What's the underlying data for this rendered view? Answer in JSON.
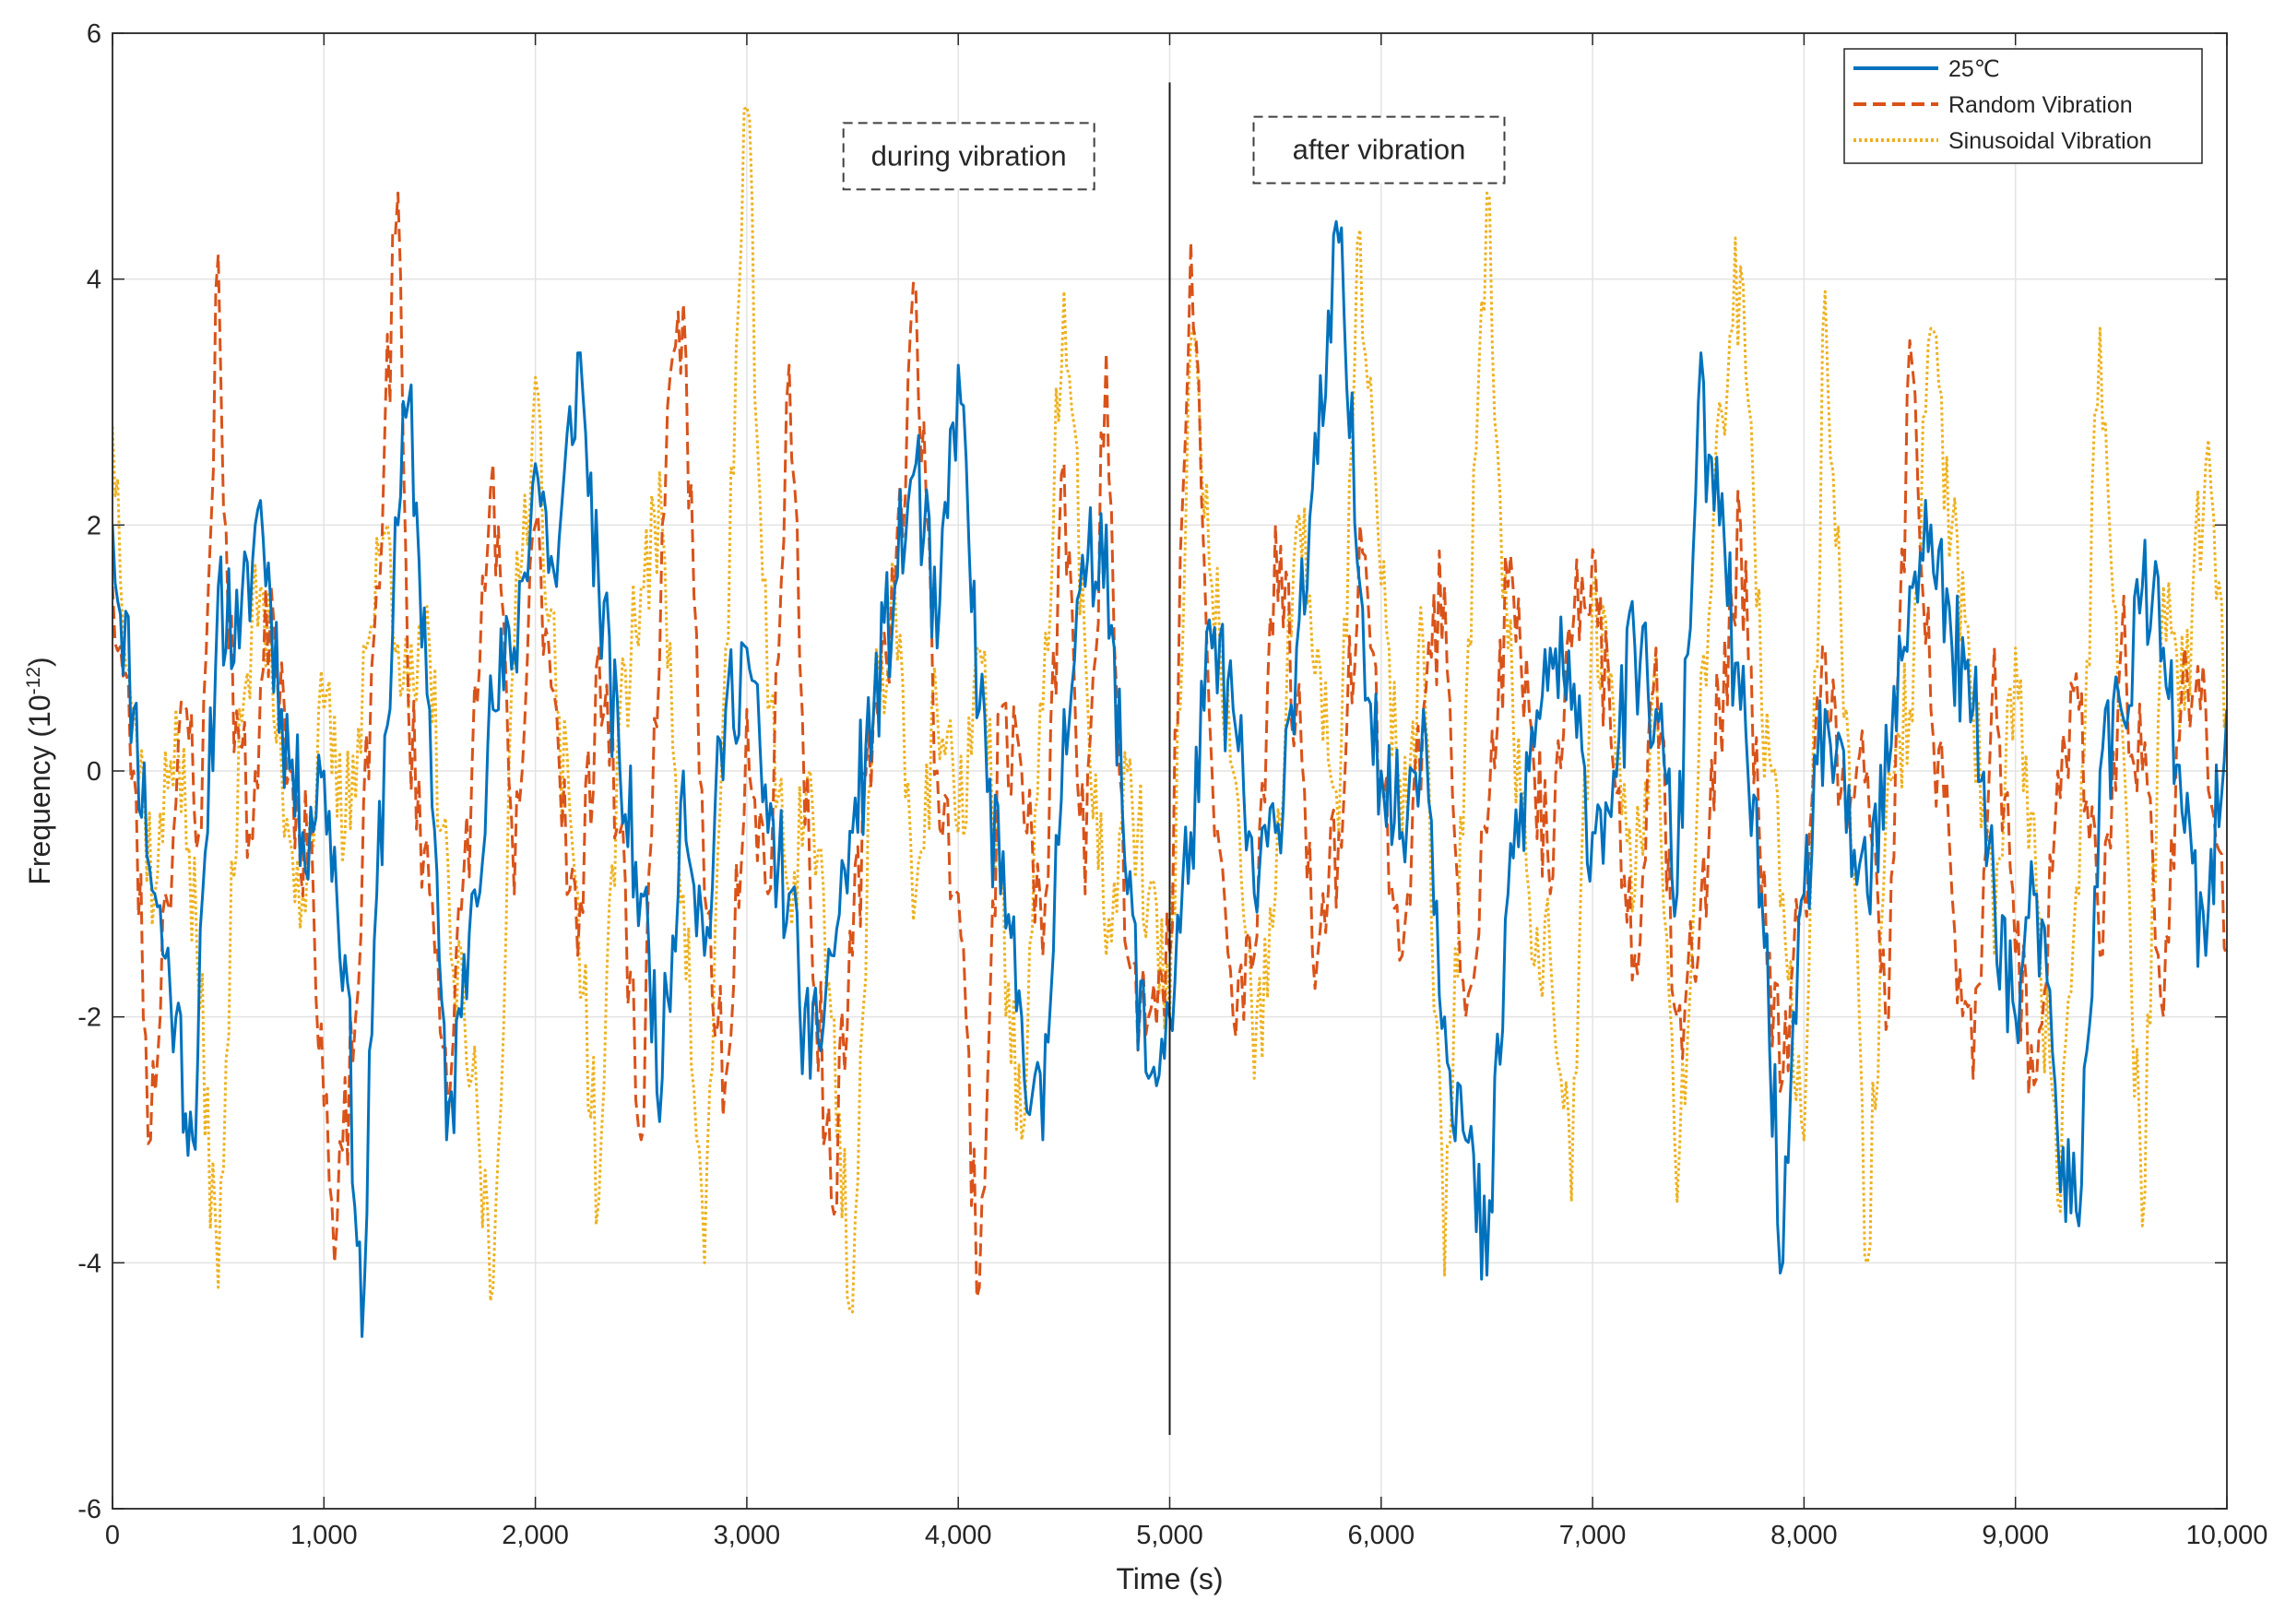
{
  "chart_data": {
    "type": "line",
    "title": "",
    "xlabel": "Time (s)",
    "ylabel": "Frequency (10",
    "ylabel_exponent": "-12",
    "ylabel_suffix": ")",
    "xlim": [
      0,
      10000
    ],
    "ylim": [
      -6,
      6
    ],
    "grid": true,
    "legend_position": "top-right",
    "x_ticks": [
      0,
      1000,
      2000,
      3000,
      4000,
      5000,
      6000,
      7000,
      8000,
      9000,
      10000
    ],
    "x_tick_labels": [
      "0",
      "1,000",
      "2,000",
      "3,000",
      "4,000",
      "5,000",
      "6,000",
      "7,000",
      "8,000",
      "9,000",
      "10,000"
    ],
    "y_ticks": [
      -6,
      -4,
      -2,
      0,
      2,
      4,
      6
    ],
    "y_tick_labels": [
      "-6",
      "-4",
      "-2",
      "0",
      "2",
      "4",
      "6"
    ],
    "divider": {
      "x": 5000,
      "y_top": 5.6,
      "y_bottom": -5.4
    },
    "annotations": [
      {
        "text": "during vibration",
        "x_center": 4050,
        "y": 5.0
      },
      {
        "text": "after vibration",
        "x_center": 5990,
        "y": 5.05
      }
    ],
    "series": [
      {
        "name": "25℃",
        "color": "#0072BD",
        "style": "solid",
        "x": [
          0,
          100,
          200,
          300,
          380,
          450,
          500,
          600,
          700,
          800,
          900,
          1000,
          1100,
          1180,
          1250,
          1350,
          1400,
          1500,
          1580,
          1650,
          1700,
          1800,
          1900,
          2000,
          2100,
          2200,
          2300,
          2400,
          2500,
          2600,
          2700,
          2800,
          2900,
          3000,
          3100,
          3200,
          3300,
          3400,
          3500,
          3600,
          3700,
          3800,
          3900,
          4000,
          4100,
          4200,
          4300,
          4400,
          4500,
          4600,
          4700,
          4800,
          4900,
          5000,
          5100,
          5200,
          5300,
          5400,
          5500,
          5600,
          5700,
          5800,
          5900,
          6000,
          6100,
          6200,
          6300,
          6400,
          6500,
          6600,
          6700,
          6800,
          6900,
          7000,
          7100,
          7200,
          7300,
          7400,
          7500,
          7600,
          7700,
          7800,
          7900,
          8000,
          8100,
          8200,
          8300,
          8400,
          8500,
          8600,
          8700,
          8800,
          8900,
          9000,
          9100,
          9200,
          9300,
          9400,
          9500,
          9600,
          9700,
          9800,
          9900,
          10000
        ],
        "y": [
          2.0,
          0.5,
          -1.0,
          -2.0,
          -3.0,
          -0.5,
          1.5,
          1.0,
          2.2,
          0.5,
          -0.5,
          0.0,
          -1.5,
          -4.6,
          -1.0,
          2.0,
          3.0,
          0.5,
          -3.0,
          -2.0,
          -1.0,
          0.5,
          1.0,
          2.5,
          1.5,
          3.4,
          1.5,
          0.0,
          -1.0,
          -2.5,
          0.0,
          -1.5,
          0.5,
          1.0,
          -0.5,
          -1.0,
          -2.5,
          -1.5,
          -0.5,
          0.5,
          1.5,
          2.5,
          1.0,
          3.3,
          0.5,
          -1.0,
          -2.0,
          -3.0,
          0.5,
          1.5,
          2.0,
          -1.0,
          -2.5,
          -2.0,
          -0.5,
          1.0,
          0.5,
          -1.0,
          -0.5,
          1.0,
          2.5,
          4.3,
          1.5,
          0.0,
          -0.5,
          0.5,
          -2.0,
          -3.0,
          -4.1,
          -1.0,
          0.0,
          1.0,
          0.5,
          -0.5,
          0.0,
          1.0,
          0.5,
          -1.0,
          3.0,
          2.0,
          0.5,
          -1.0,
          -4.0,
          -1.0,
          0.5,
          -0.5,
          -1.0,
          0.0,
          1.5,
          2.0,
          1.0,
          0.5,
          -1.0,
          -2.0,
          -1.0,
          -3.0,
          -3.7,
          0.0,
          0.5,
          1.5,
          1.0,
          -0.5,
          -1.5,
          0.5
        ]
      },
      {
        "name": "Random Vibration",
        "color": "#D95319",
        "style": "dashed",
        "x": [
          0,
          100,
          180,
          250,
          350,
          420,
          500,
          550,
          650,
          750,
          850,
          950,
          1050,
          1150,
          1250,
          1350,
          1400,
          1500,
          1600,
          1700,
          1800,
          1900,
          2000,
          2100,
          2200,
          2300,
          2400,
          2500,
          2600,
          2700,
          2800,
          2900,
          3000,
          3100,
          3200,
          3300,
          3400,
          3500,
          3600,
          3700,
          3800,
          3900,
          4000,
          4100,
          4200,
          4300,
          4400,
          4500,
          4600,
          4700,
          4800,
          4900,
          5000,
          5100,
          5200,
          5300,
          5400,
          5500,
          5600,
          5700,
          5800,
          5900,
          6000,
          6100,
          6200,
          6300,
          6400,
          6500,
          6600,
          6700,
          6800,
          6900,
          7000,
          7100,
          7200,
          7300,
          7400,
          7500,
          7600,
          7700,
          7800,
          7900,
          8000,
          8100,
          8200,
          8300,
          8400,
          8500,
          8600,
          8700,
          8800,
          8900,
          9000,
          9100,
          9200,
          9300,
          9400,
          9500,
          9600,
          9700,
          9800,
          9900,
          10000
        ],
        "y": [
          1.5,
          0.0,
          -3.0,
          -1.0,
          0.5,
          -0.5,
          4.2,
          1.0,
          -0.5,
          1.5,
          0.0,
          -1.0,
          -4.0,
          -2.0,
          1.5,
          4.7,
          0.5,
          -1.0,
          -2.5,
          0.0,
          2.5,
          -1.0,
          2.0,
          0.5,
          -1.5,
          1.0,
          -0.5,
          -3.0,
          2.0,
          3.8,
          -1.0,
          -2.5,
          0.5,
          -1.0,
          3.3,
          -1.0,
          -3.5,
          -1.5,
          0.5,
          1.5,
          3.9,
          0.0,
          -1.0,
          -4.2,
          0.5,
          0.0,
          -1.5,
          2.5,
          -1.0,
          3.4,
          -1.5,
          -2.0,
          -1.5,
          4.3,
          0.0,
          -2.0,
          -1.5,
          2.0,
          0.5,
          -1.5,
          -0.5,
          2.0,
          0.0,
          -1.5,
          0.5,
          1.5,
          -2.0,
          -0.5,
          1.5,
          0.5,
          -1.0,
          1.0,
          1.8,
          0.0,
          -1.5,
          1.0,
          -2.0,
          -1.5,
          0.5,
          2.0,
          -1.0,
          -2.5,
          -1.0,
          1.0,
          -0.5,
          0.0,
          -2.0,
          3.5,
          0.5,
          -1.0,
          -2.5,
          1.0,
          -1.5,
          -2.5,
          0.0,
          0.5,
          -1.5,
          1.0,
          0.0,
          -2.0,
          1.0,
          0.5,
          -1.5
        ]
      },
      {
        "name": "Sinusoidal Vibration",
        "color": "#EDB120",
        "style": "dotted",
        "x": [
          0,
          100,
          200,
          300,
          400,
          500,
          600,
          700,
          800,
          900,
          1000,
          1100,
          1200,
          1300,
          1400,
          1500,
          1600,
          1700,
          1800,
          1900,
          2000,
          2100,
          2200,
          2300,
          2400,
          2500,
          2600,
          2700,
          2800,
          2900,
          3000,
          3100,
          3200,
          3300,
          3400,
          3500,
          3600,
          3700,
          3800,
          3900,
          4000,
          4100,
          4200,
          4300,
          4400,
          4500,
          4600,
          4700,
          4800,
          4900,
          5000,
          5100,
          5200,
          5300,
          5400,
          5500,
          5600,
          5700,
          5800,
          5900,
          6000,
          6100,
          6200,
          6300,
          6400,
          6500,
          6600,
          6700,
          6800,
          6900,
          7000,
          7100,
          7200,
          7300,
          7400,
          7500,
          7600,
          7700,
          7800,
          7900,
          8000,
          8100,
          8200,
          8300,
          8400,
          8500,
          8600,
          8700,
          8800,
          8900,
          9000,
          9100,
          9200,
          9300,
          9400,
          9500,
          9600,
          9700,
          9800,
          9900,
          10000
        ],
        "y": [
          2.8,
          0.5,
          -1.0,
          0.5,
          -1.5,
          -4.2,
          0.5,
          1.5,
          0.0,
          -1.0,
          0.5,
          -0.5,
          1.0,
          2.0,
          0.5,
          1.0,
          -1.5,
          -2.5,
          -4.2,
          1.0,
          3.2,
          0.5,
          -1.0,
          -3.5,
          0.5,
          1.5,
          2.0,
          -1.0,
          -4.0,
          1.0,
          5.4,
          0.5,
          -1.0,
          0.0,
          -2.0,
          -4.4,
          0.5,
          1.5,
          -1.0,
          0.5,
          -0.5,
          1.0,
          -1.0,
          -3.0,
          0.5,
          3.9,
          1.0,
          -1.5,
          0.0,
          -1.0,
          -2.0,
          3.5,
          1.5,
          0.0,
          -2.5,
          -1.0,
          2.0,
          1.0,
          -0.5,
          4.4,
          1.5,
          -0.5,
          1.0,
          -4.1,
          0.5,
          4.7,
          1.0,
          -1.0,
          -1.5,
          -3.5,
          1.5,
          0.5,
          -1.0,
          1.0,
          -3.5,
          0.0,
          3.0,
          4.1,
          0.5,
          -1.0,
          -3.0,
          3.9,
          0.5,
          -4.0,
          0.0,
          0.5,
          3.6,
          2.0,
          0.5,
          -1.5,
          1.0,
          -1.0,
          -3.5,
          -1.0,
          3.6,
          0.5,
          -3.7,
          1.5,
          0.5,
          2.5,
          0.5
        ]
      }
    ]
  }
}
